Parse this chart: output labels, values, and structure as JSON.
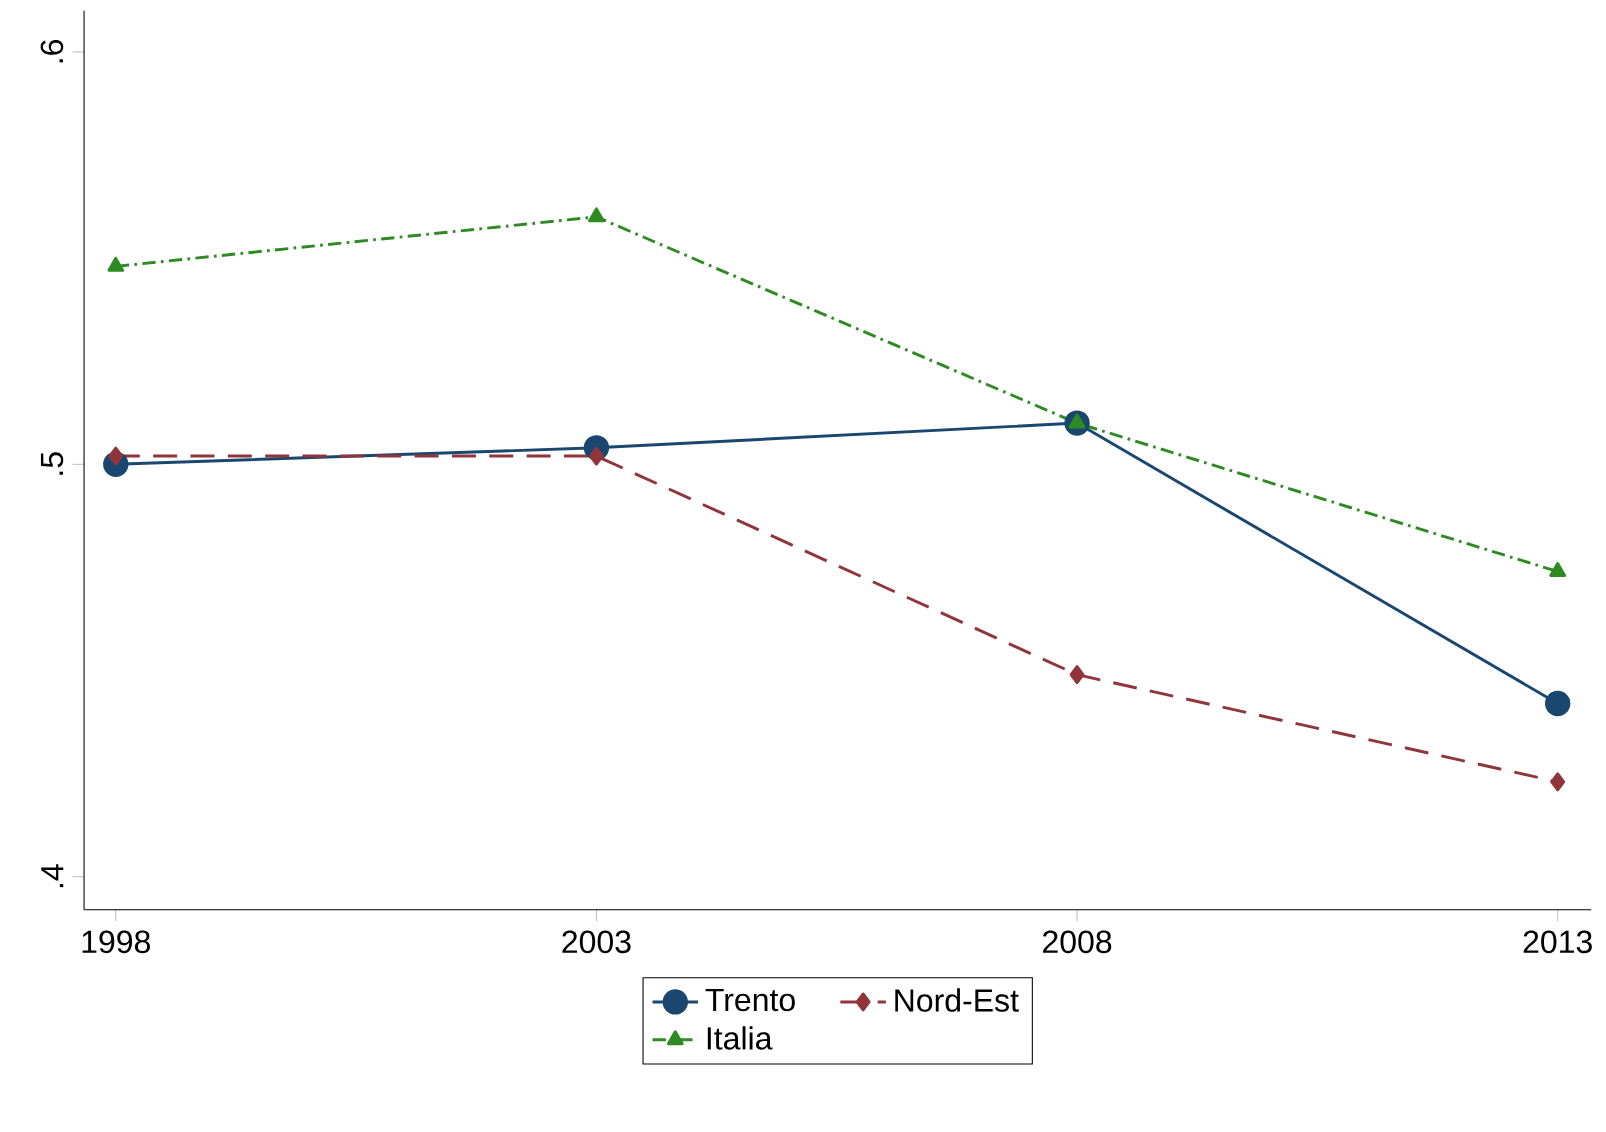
{
  "chart_data": {
    "type": "line",
    "x": [
      1998,
      2003,
      2008,
      2013
    ],
    "series": [
      {
        "name": "Trento",
        "color": "#1a476f",
        "values": [
          0.5,
          0.504,
          0.51,
          0.442
        ],
        "marker": "circle",
        "line_style": "solid"
      },
      {
        "name": "Nord-Est",
        "color": "#90353b",
        "values": [
          0.502,
          0.502,
          0.449,
          0.423
        ],
        "marker": "diamond",
        "line_style": "dashed"
      },
      {
        "name": "Italia",
        "color": "#2e8b22",
        "values": [
          0.548,
          0.56,
          0.51,
          0.474
        ],
        "marker": "triangle",
        "line_style": "dashdotted"
      }
    ],
    "xlim": [
      1997.67,
      2013.35
    ],
    "ylim": [
      0.392,
      0.61
    ],
    "xticks": [
      1998,
      2003,
      2008,
      2013
    ],
    "yticks": [
      {
        "value": 0.4,
        "label": ".4"
      },
      {
        "value": 0.5,
        "label": ".5"
      },
      {
        "value": 0.6,
        "label": ".6"
      }
    ],
    "grid": false,
    "legend": "bottom"
  }
}
